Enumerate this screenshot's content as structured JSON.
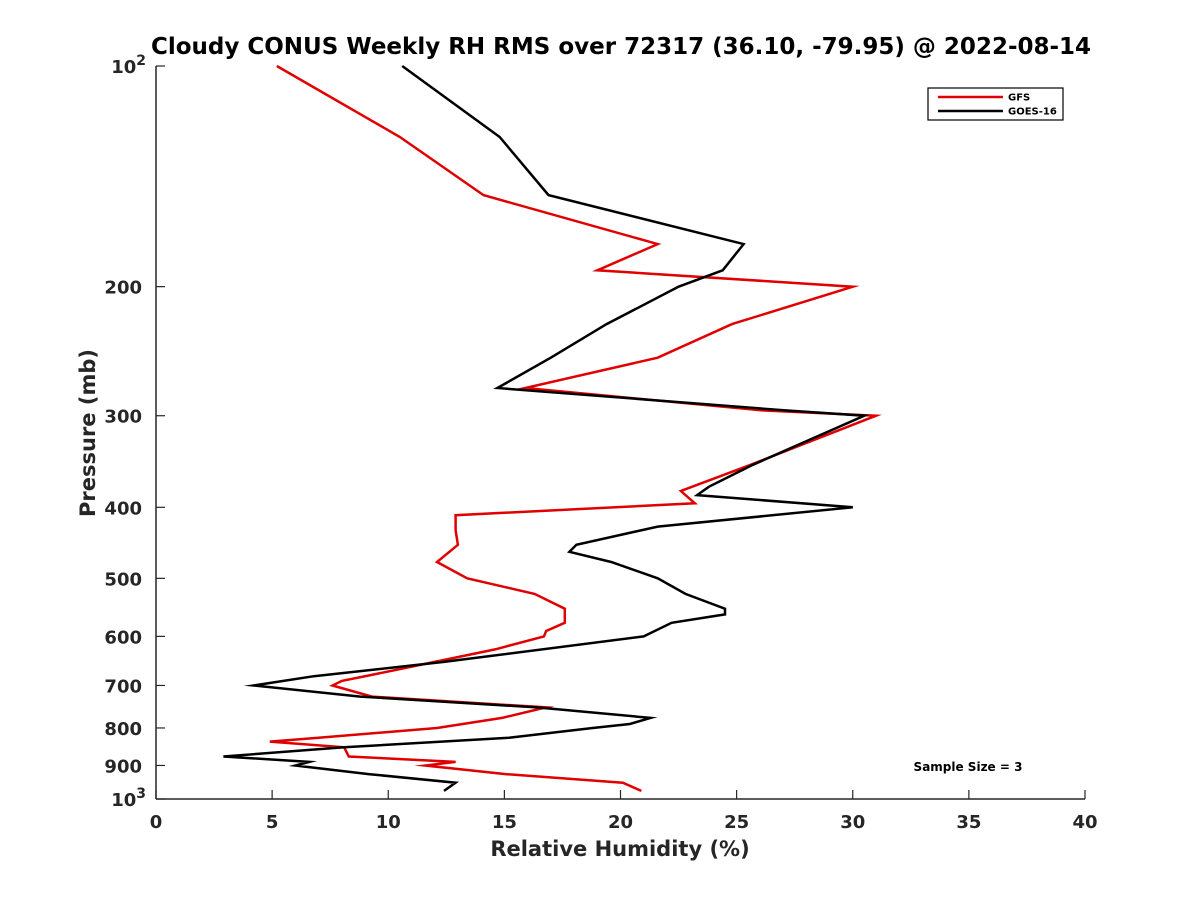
{
  "chart_data": {
    "type": "line",
    "title": "Cloudy CONUS Weekly RH RMS over 72317 (36.10, -79.95) @ 2022-08-14",
    "xlabel": "Relative Humidity (%)",
    "ylabel": "Pressure (mb)",
    "xlim": [
      0,
      40
    ],
    "ylim": [
      100,
      1000
    ],
    "y_scale": "log",
    "y_reversed": true,
    "grid": false,
    "legend_position": "top-right",
    "x_ticks": [
      {
        "value": 0,
        "label": "0"
      },
      {
        "value": 5,
        "label": "5"
      },
      {
        "value": 10,
        "label": "10"
      },
      {
        "value": 15,
        "label": "15"
      },
      {
        "value": 20,
        "label": "20"
      },
      {
        "value": 25,
        "label": "25"
      },
      {
        "value": 30,
        "label": "30"
      },
      {
        "value": 35,
        "label": "35"
      },
      {
        "value": 40,
        "label": "40"
      }
    ],
    "y_ticks": [
      {
        "value": 100,
        "label": "10",
        "sup": "2"
      },
      {
        "value": 200,
        "label": "200",
        "sup": ""
      },
      {
        "value": 300,
        "label": "300",
        "sup": ""
      },
      {
        "value": 400,
        "label": "400",
        "sup": ""
      },
      {
        "value": 500,
        "label": "500",
        "sup": ""
      },
      {
        "value": 600,
        "label": "600",
        "sup": ""
      },
      {
        "value": 700,
        "label": "700",
        "sup": ""
      },
      {
        "value": 800,
        "label": "800",
        "sup": ""
      },
      {
        "value": 900,
        "label": "900",
        "sup": ""
      },
      {
        "value": 1000,
        "label": "10",
        "sup": "3"
      }
    ],
    "annotation": "Sample Size = 3",
    "series": [
      {
        "name": "GFS",
        "color": "#e00000",
        "points": [
          [
            5.2,
            100
          ],
          [
            10.5,
            125
          ],
          [
            14.1,
            150
          ],
          [
            21.6,
            175
          ],
          [
            19.0,
            190
          ],
          [
            30.0,
            200
          ],
          [
            24.8,
            225
          ],
          [
            21.6,
            250
          ],
          [
            15.9,
            275
          ],
          [
            26.1,
            295
          ],
          [
            31.0,
            300
          ],
          [
            25.6,
            350
          ],
          [
            22.6,
            380
          ],
          [
            23.2,
            395
          ],
          [
            12.9,
            410
          ],
          [
            12.9,
            430
          ],
          [
            13.0,
            450
          ],
          [
            12.1,
            475
          ],
          [
            13.4,
            500
          ],
          [
            16.3,
            525
          ],
          [
            17.6,
            550
          ],
          [
            17.6,
            575
          ],
          [
            16.8,
            590
          ],
          [
            16.7,
            600
          ],
          [
            14.6,
            625
          ],
          [
            12.0,
            650
          ],
          [
            9.5,
            675
          ],
          [
            8.0,
            690
          ],
          [
            7.6,
            700
          ],
          [
            9.3,
            725
          ],
          [
            16.8,
            750
          ],
          [
            14.9,
            775
          ],
          [
            12.1,
            800
          ],
          [
            7.0,
            825
          ],
          [
            4.9,
            835
          ],
          [
            8.1,
            850
          ],
          [
            8.3,
            875
          ],
          [
            12.9,
            890
          ],
          [
            11.6,
            900
          ],
          [
            15.1,
            925
          ],
          [
            20.1,
            950
          ],
          [
            20.9,
            975
          ]
        ]
      },
      {
        "name": "GOES-16",
        "color": "#000000",
        "points": [
          [
            10.6,
            100
          ],
          [
            14.8,
            125
          ],
          [
            16.9,
            150
          ],
          [
            25.3,
            175
          ],
          [
            24.4,
            190
          ],
          [
            22.5,
            200
          ],
          [
            19.4,
            225
          ],
          [
            17.0,
            250
          ],
          [
            14.7,
            275
          ],
          [
            27.1,
            295
          ],
          [
            30.5,
            300
          ],
          [
            25.7,
            350
          ],
          [
            23.8,
            375
          ],
          [
            23.3,
            385
          ],
          [
            30.0,
            400
          ],
          [
            21.6,
            425
          ],
          [
            18.1,
            450
          ],
          [
            17.8,
            460
          ],
          [
            19.6,
            475
          ],
          [
            21.6,
            500
          ],
          [
            22.8,
            525
          ],
          [
            24.5,
            550
          ],
          [
            24.5,
            560
          ],
          [
            22.2,
            575
          ],
          [
            21.0,
            600
          ],
          [
            12.4,
            650
          ],
          [
            6.8,
            680
          ],
          [
            4.2,
            700
          ],
          [
            8.8,
            725
          ],
          [
            16.4,
            750
          ],
          [
            21.3,
            775
          ],
          [
            20.4,
            790
          ],
          [
            18.8,
            800
          ],
          [
            15.2,
            825
          ],
          [
            8.1,
            850
          ],
          [
            2.9,
            875
          ],
          [
            6.6,
            890
          ],
          [
            6.0,
            900
          ],
          [
            9.2,
            925
          ],
          [
            12.9,
            950
          ],
          [
            12.4,
            975
          ]
        ]
      }
    ]
  }
}
